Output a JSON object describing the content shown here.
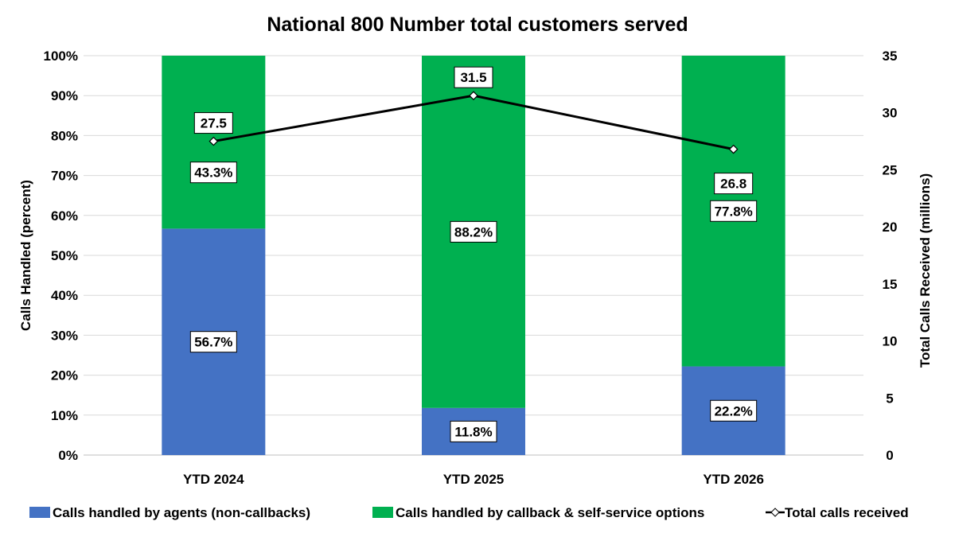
{
  "chart_data": {
    "type": "bar",
    "stacked": true,
    "title": "National 800 Number total customers served",
    "categories": [
      "YTD 2024",
      "YTD 2025",
      "YTD 2026"
    ],
    "ylabel": "Calls Handled (percent)",
    "y2label": "Total Calls Received (millions)",
    "ylim": [
      0,
      100
    ],
    "y2lim": [
      0,
      35
    ],
    "yticks": [
      "0%",
      "10%",
      "20%",
      "30%",
      "40%",
      "50%",
      "60%",
      "70%",
      "80%",
      "90%",
      "100%"
    ],
    "y2ticks": [
      "0",
      "5",
      "10",
      "15",
      "20",
      "25",
      "30",
      "35"
    ],
    "grid": true,
    "legend": "bottom",
    "series": [
      {
        "name": "Calls handled by agents (non-callbacks)",
        "type": "bar",
        "axis": "left",
        "color": "#4472C4",
        "values": [
          56.7,
          11.8,
          22.2
        ],
        "labels": [
          "56.7%",
          "11.8%",
          "22.2%"
        ]
      },
      {
        "name": "Calls handled by callback & self-service options",
        "type": "bar",
        "axis": "left",
        "color": "#00B050",
        "values": [
          43.3,
          88.2,
          77.8
        ],
        "labels": [
          "43.3%",
          "88.2%",
          "77.8%"
        ]
      },
      {
        "name": "Total calls received",
        "type": "line",
        "axis": "right",
        "color": "#000000",
        "marker": "diamond",
        "values": [
          27.5,
          31.5,
          26.8
        ],
        "labels": [
          "27.5",
          "31.5",
          "26.8"
        ]
      }
    ]
  }
}
